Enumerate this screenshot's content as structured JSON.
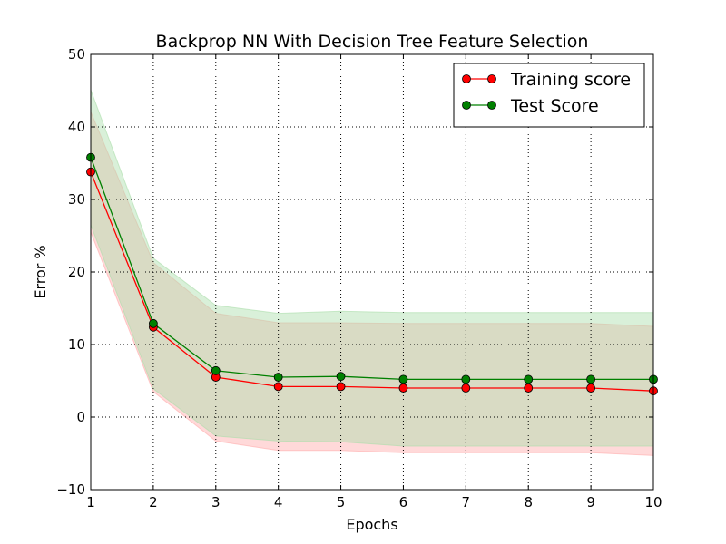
{
  "chart_data": {
    "type": "line",
    "title": "Backprop NN With Decision Tree Feature Selection",
    "xlabel": "Epochs",
    "ylabel": "Error %",
    "xlim": [
      1,
      10
    ],
    "ylim": [
      -10,
      50
    ],
    "x_ticks": [
      1,
      2,
      3,
      4,
      5,
      6,
      7,
      8,
      9,
      10
    ],
    "y_ticks": [
      -10,
      0,
      10,
      20,
      30,
      40,
      50
    ],
    "grid": true,
    "legend_position": "top-right",
    "x": [
      1,
      2,
      3,
      4,
      5,
      6,
      7,
      8,
      9,
      10
    ],
    "series": [
      {
        "name": "Training score",
        "color": "#ff0000",
        "band_color": "#ffaaaa",
        "values": [
          33.8,
          12.4,
          5.5,
          4.2,
          4.2,
          4.0,
          4.0,
          4.0,
          4.0,
          3.6
        ],
        "band_lower": [
          25.5,
          3.5,
          -3.3,
          -4.6,
          -4.6,
          -4.9,
          -4.9,
          -4.9,
          -4.9,
          -5.3
        ],
        "band_upper": [
          42.1,
          21.3,
          14.3,
          13.0,
          13.0,
          12.9,
          12.9,
          12.9,
          12.9,
          12.5
        ]
      },
      {
        "name": "Test Score",
        "color": "#008000",
        "band_color": "#aaddaa",
        "values": [
          35.8,
          12.9,
          6.4,
          5.5,
          5.6,
          5.2,
          5.2,
          5.2,
          5.2,
          5.2
        ],
        "band_lower": [
          26.5,
          3.9,
          -2.6,
          -3.3,
          -3.4,
          -4.0,
          -4.0,
          -4.0,
          -4.0,
          -4.0
        ],
        "band_upper": [
          45.1,
          21.9,
          15.4,
          14.3,
          14.6,
          14.4,
          14.4,
          14.4,
          14.4,
          14.4
        ]
      }
    ]
  }
}
